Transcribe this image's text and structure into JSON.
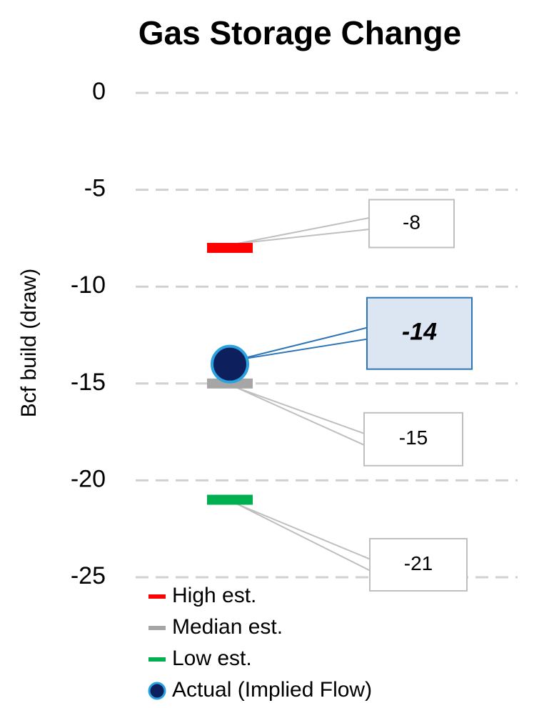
{
  "chart_data": {
    "type": "dot",
    "title": "Gas Storage Change",
    "y_label": "Bcf build (draw)",
    "ylim": [
      -25,
      0
    ],
    "yticks": [
      0,
      -5,
      -10,
      -15,
      -20,
      -25
    ],
    "grid": true,
    "legend": "bottom-left",
    "series": [
      {
        "name": "High est.",
        "color": "#ff0000",
        "marker": "dash",
        "values": [
          -8
        ]
      },
      {
        "name": "Median est.",
        "color": "#a6a6a6",
        "marker": "dash",
        "values": [
          -15
        ]
      },
      {
        "name": "Low est.",
        "color": "#00b050",
        "marker": "dash",
        "values": [
          -21
        ]
      },
      {
        "name": "Actual (Implied Flow)",
        "color": "#0d1f5c",
        "edge": "#29a3e0",
        "marker": "circle",
        "values": [
          -14
        ]
      }
    ]
  }
}
